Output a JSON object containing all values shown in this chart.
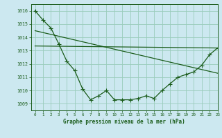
{
  "bg_color": "#cce8f0",
  "grid_color": "#99ccbb",
  "line_color": "#1a5c1a",
  "title": "Graphe pression niveau de la mer (hPa)",
  "xlim": [
    -0.5,
    23
  ],
  "ylim": [
    1008.5,
    1016.5
  ],
  "yticks": [
    1009,
    1010,
    1011,
    1012,
    1013,
    1014,
    1015,
    1016
  ],
  "xticks": [
    0,
    1,
    2,
    3,
    4,
    5,
    6,
    7,
    8,
    9,
    10,
    11,
    12,
    13,
    14,
    15,
    16,
    17,
    18,
    19,
    20,
    21,
    22,
    23
  ],
  "series1_x": [
    0,
    1,
    2,
    3,
    4,
    5,
    6,
    7,
    8,
    9,
    10,
    11,
    12,
    13,
    14,
    15,
    16,
    17,
    18,
    19,
    20,
    21,
    22,
    23
  ],
  "series1_y": [
    1016.0,
    1015.3,
    1014.7,
    1013.5,
    1012.2,
    1011.5,
    1010.1,
    1009.3,
    1009.6,
    1010.0,
    1009.3,
    1009.3,
    1009.3,
    1009.4,
    1009.6,
    1009.4,
    1010.0,
    1010.5,
    1011.0,
    1011.2,
    1011.4,
    1011.9,
    1012.7,
    1013.2
  ],
  "series2_x": [
    0,
    23
  ],
  "series2_y": [
    1013.35,
    1013.2
  ],
  "series3_x": [
    0,
    23
  ],
  "series3_y": [
    1014.5,
    1011.3
  ],
  "marker": "+",
  "markersize": 4.0,
  "linewidth": 0.9
}
